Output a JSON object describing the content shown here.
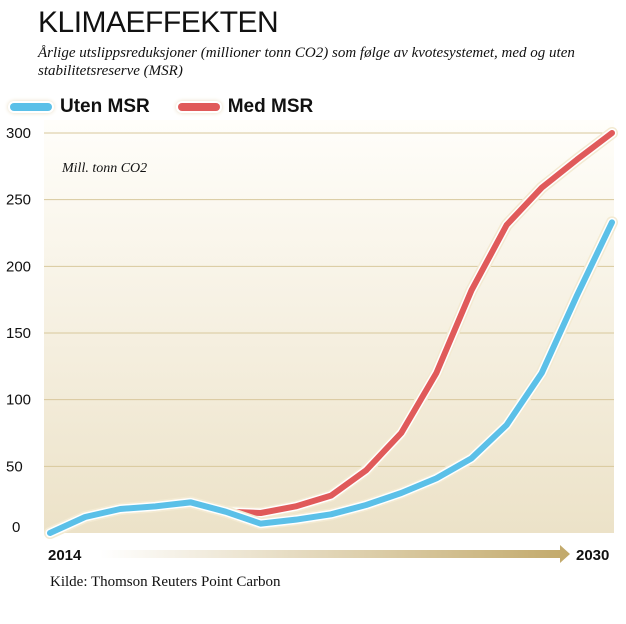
{
  "header": {
    "title": "KLIMAEFFEKTEN",
    "subtitle": "Årlige utslippsreduksjoner (millioner tonn CO2) som følge av kvotesystemet, med og uten stabilitetsreserve (MSR)"
  },
  "source": "Kilde: Thomson Reuters Point Carbon",
  "chart_data": {
    "type": "line",
    "unit_label": "Mill. tonn CO2",
    "x": [
      2014,
      2015,
      2016,
      2017,
      2018,
      2019,
      2020,
      2021,
      2022,
      2023,
      2024,
      2025,
      2026,
      2027,
      2028,
      2029,
      2030
    ],
    "x_tick_labels": [
      "2014",
      "2030"
    ],
    "y_ticks": [
      0,
      50,
      100,
      150,
      200,
      250,
      300
    ],
    "ylim": [
      0,
      300
    ],
    "grid": true,
    "legend": "top-left",
    "series": [
      {
        "name": "Uten MSR",
        "color": "#5bc0e8",
        "values": [
          0,
          12,
          18,
          20,
          23,
          16,
          7,
          10,
          14,
          21,
          30,
          41,
          56,
          81,
          120,
          178,
          233
        ]
      },
      {
        "name": "Med MSR",
        "color": "#e05a5a",
        "values": [
          0,
          12,
          18,
          20,
          23,
          16,
          15,
          20,
          28,
          47,
          75,
          120,
          182,
          231,
          259,
          280,
          300
        ]
      }
    ]
  }
}
